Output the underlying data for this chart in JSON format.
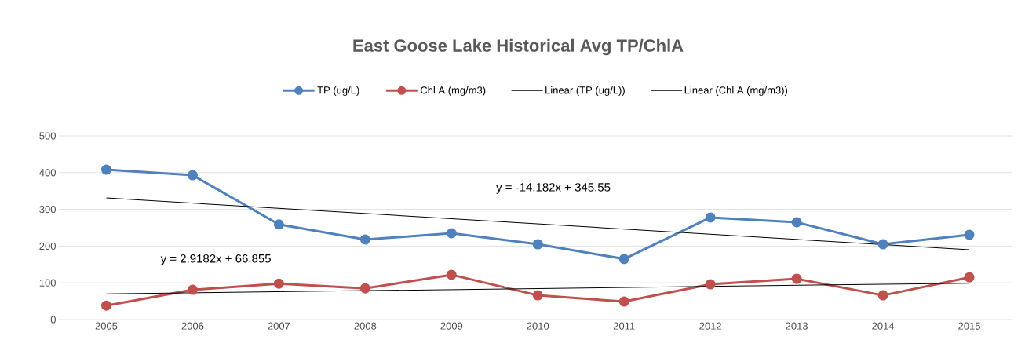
{
  "chart_data": {
    "type": "line",
    "title": "East Goose Lake Historical Avg TP/ChlA",
    "categories": [
      "2005",
      "2006",
      "2007",
      "2008",
      "2009",
      "2010",
      "2011",
      "2012",
      "2013",
      "2014",
      "2015"
    ],
    "series": [
      {
        "name": "TP (ug/L)",
        "color": "#4f81bd",
        "values": [
          408,
          393,
          259,
          218,
          235,
          205,
          165,
          278,
          265,
          205,
          231
        ]
      },
      {
        "name": "Chl A (mg/m3)",
        "color": "#c0504d",
        "values": [
          38,
          81,
          98,
          85,
          122,
          66,
          49,
          96,
          111,
          66,
          115
        ]
      },
      {
        "name": "Linear (TP (ug/L))",
        "type": "line",
        "color": "#000000",
        "marker": "none",
        "values": [
          331,
          null,
          null,
          null,
          null,
          null,
          null,
          null,
          null,
          null,
          190
        ]
      },
      {
        "name": "Linear (Chl A (mg/m3))",
        "type": "line",
        "color": "#000000",
        "marker": "none",
        "values": [
          70,
          null,
          null,
          null,
          null,
          null,
          null,
          null,
          null,
          null,
          99
        ]
      }
    ],
    "annotations": [
      "y = -14.182x + 345.55",
      "y = 2.9182x + 66.855"
    ],
    "ylim": [
      0,
      500
    ],
    "yticks": [
      0,
      100,
      200,
      300,
      400,
      500
    ],
    "grid": "y",
    "legend": "top",
    "marker": "circle",
    "line_style": "solid"
  }
}
